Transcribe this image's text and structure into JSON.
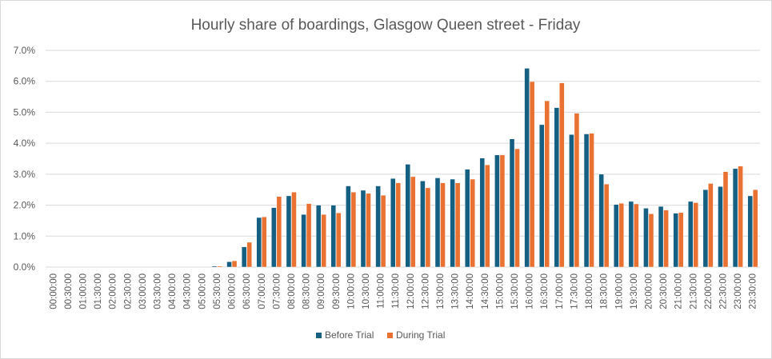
{
  "chart_data": {
    "type": "bar",
    "title": "Hourly share of boardings, Glasgow Queen street - Friday",
    "xlabel": "",
    "ylabel": "",
    "ylim": [
      0,
      7
    ],
    "yticks": [
      "0.0%",
      "1.0%",
      "2.0%",
      "3.0%",
      "4.0%",
      "5.0%",
      "6.0%",
      "7.0%"
    ],
    "grid": true,
    "legend_position": "bottom",
    "categories": [
      "00:00:00",
      "00:30:00",
      "01:00:00",
      "01:30:00",
      "02:00:00",
      "02:30:00",
      "03:00:00",
      "03:30:00",
      "04:00:00",
      "04:30:00",
      "05:00:00",
      "05:30:00",
      "06:00:00",
      "06:30:00",
      "07:00:00",
      "07:30:00",
      "08:00:00",
      "08:30:00",
      "09:00:00",
      "09:30:00",
      "10:00:00",
      "10:30:00",
      "11:00:00",
      "11:30:00",
      "12:00:00",
      "12:30:00",
      "13:00:00",
      "13:30:00",
      "14:00:00",
      "14:30:00",
      "15:00:00",
      "15:30:00",
      "16:00:00",
      "16:30:00",
      "17:00:00",
      "17:30:00",
      "18:00:00",
      "18:30:00",
      "19:00:00",
      "19:30:00",
      "20:00:00",
      "20:30:00",
      "21:00:00",
      "21:30:00",
      "22:00:00",
      "22:30:00",
      "23:00:00",
      "23:30:00"
    ],
    "series": [
      {
        "name": "Before Trial",
        "color": "#156082",
        "values": [
          0,
          0,
          0,
          0,
          0,
          0,
          0,
          0,
          0,
          0,
          0,
          0.03,
          0.17,
          0.65,
          1.6,
          1.92,
          2.3,
          1.7,
          2.0,
          2.0,
          2.62,
          2.48,
          2.62,
          2.86,
          3.32,
          2.78,
          2.88,
          2.84,
          3.16,
          3.52,
          3.62,
          4.14,
          6.42,
          4.6,
          5.15,
          4.28,
          4.3,
          3.0,
          2.02,
          2.12,
          1.9,
          1.96,
          1.74,
          2.12,
          2.5,
          2.6,
          3.18,
          2.3
        ]
      },
      {
        "name": "During Trial",
        "color": "#E97132",
        "values": [
          0,
          0,
          0,
          0,
          0,
          0,
          0,
          0,
          0,
          0,
          0,
          0.03,
          0.2,
          0.8,
          1.62,
          2.28,
          2.42,
          2.05,
          1.7,
          1.75,
          2.42,
          2.38,
          2.32,
          2.72,
          2.92,
          2.56,
          2.72,
          2.72,
          2.84,
          3.3,
          3.62,
          3.82,
          5.99,
          5.37,
          5.95,
          4.97,
          4.32,
          2.68,
          2.06,
          2.04,
          1.72,
          1.84,
          1.76,
          2.08,
          2.7,
          3.08,
          3.26,
          2.5
        ]
      }
    ]
  }
}
